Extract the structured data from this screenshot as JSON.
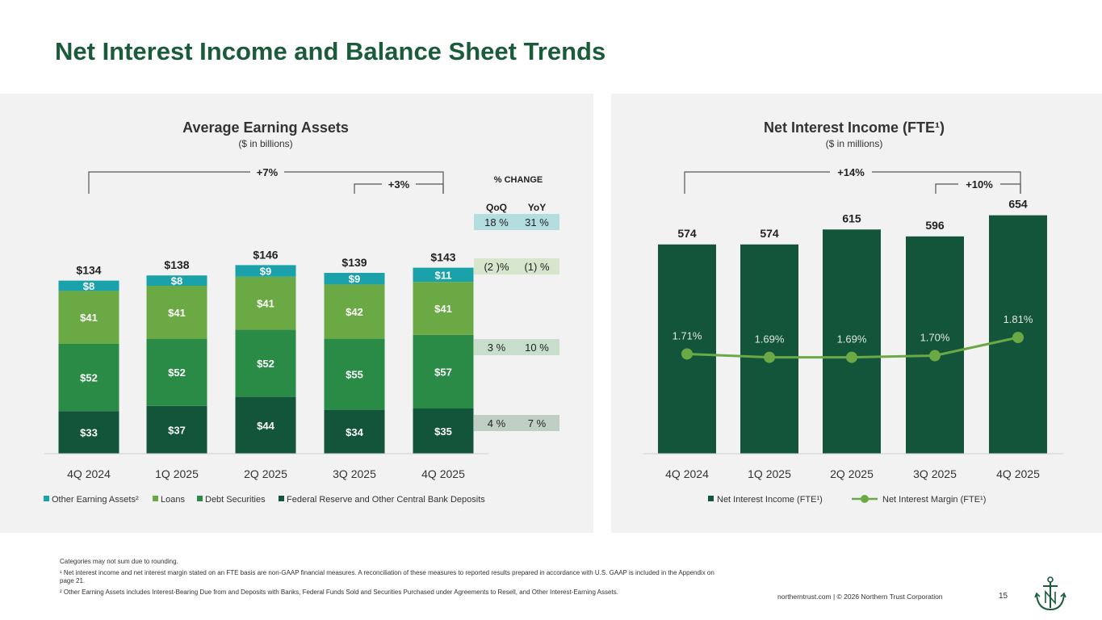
{
  "title": "Net Interest Income and Balance Sheet Trends",
  "colors": {
    "deposits": "#13553b",
    "securities": "#2a8b46",
    "loans": "#6aa944",
    "other": "#1aa1aa",
    "nii_bar": "#13553b",
    "nim_line": "#6aa944"
  },
  "chart_data": [
    {
      "type": "bar",
      "stacked": true,
      "title": "Average Earning Assets",
      "subtitle": "($ in billions)",
      "categories": [
        "4Q 2024",
        "1Q 2025",
        "2Q 2025",
        "3Q 2025",
        "4Q 2025"
      ],
      "series": [
        {
          "name": "Federal Reserve and Other Central Bank Deposits",
          "values": [
            33,
            37,
            44,
            34,
            35
          ],
          "labels": [
            "$33",
            "$37",
            "$44",
            "$34",
            "$35"
          ]
        },
        {
          "name": "Debt Securities",
          "values": [
            52,
            52,
            52,
            55,
            57
          ],
          "labels": [
            "$52",
            "$52",
            "$52",
            "$55",
            "$57"
          ]
        },
        {
          "name": "Loans",
          "values": [
            41,
            41,
            41,
            42,
            41
          ],
          "labels": [
            "$41",
            "$41",
            "$41",
            "$42",
            "$41"
          ]
        },
        {
          "name": "Other Earning Assets²",
          "values": [
            8,
            8,
            9,
            9,
            11
          ],
          "labels": [
            "$8",
            "$8",
            "$9",
            "$9",
            "$11"
          ]
        }
      ],
      "totals": [
        "$134",
        "$138",
        "$146",
        "$139",
        "$143"
      ],
      "yoy_bracket": "+7%",
      "qoq_bracket": "+3%",
      "pct_change": {
        "header": "% CHANGE",
        "col_qoq": "QoQ",
        "col_yoy": "YoY",
        "rows": [
          {
            "series": "Other Earning Assets²",
            "qoq": "18 %",
            "yoy": "31 %"
          },
          {
            "series": "Loans",
            "qoq": "(2 )%",
            "yoy": "(1) %"
          },
          {
            "series": "Debt Securities",
            "qoq": "3 %",
            "yoy": "10 %"
          },
          {
            "series": "Federal Reserve and Other Central Bank Deposits",
            "qoq": "4 %",
            "yoy": "7 %"
          }
        ]
      },
      "legend": [
        "Other Earning Assets²",
        "Loans",
        "Debt Securities",
        "Federal Reserve and Other Central Bank Deposits"
      ],
      "ylim": [
        0,
        160
      ]
    },
    {
      "type": "bar",
      "title": "Net Interest Income (FTE¹)",
      "subtitle": "($ in millions)",
      "categories": [
        "4Q 2024",
        "1Q 2025",
        "2Q 2025",
        "3Q 2025",
        "4Q 2025"
      ],
      "series": [
        {
          "name": "Net Interest Income (FTE¹)",
          "type": "bar",
          "values": [
            574,
            574,
            615,
            596,
            654
          ],
          "labels": [
            "574",
            "574",
            "615",
            "596",
            "654"
          ]
        },
        {
          "name": "Net Interest Margin (FTE¹)",
          "type": "line",
          "values": [
            1.71,
            1.69,
            1.69,
            1.7,
            1.81
          ],
          "labels": [
            "1.71%",
            "1.69%",
            "1.69%",
            "1.70%",
            "1.81%"
          ]
        }
      ],
      "yoy_bracket": "+14%",
      "qoq_bracket": "+10%",
      "legend": [
        "Net Interest Income (FTE¹)",
        "Net Interest Margin (FTE¹)"
      ],
      "ylim": [
        0,
        700
      ]
    }
  ],
  "footnotes": {
    "rounding": "Categories may not sum due to rounding.",
    "note1": "¹ Net interest income and net interest margin stated on an FTE basis are non-GAAP financial measures. A reconciliation of these measures to reported results prepared in accordance with U.S. GAAP is included in the Appendix on page 21.",
    "note2": "² Other Earning Assets includes Interest-Bearing Due from and Deposits with Banks, Federal Funds Sold and Securities Purchased under Agreements to Resell, and Other Interest-Earning Assets."
  },
  "footer": {
    "site": "northerntrust.com | © 2026 Northern Trust Corporation",
    "page": "15"
  }
}
